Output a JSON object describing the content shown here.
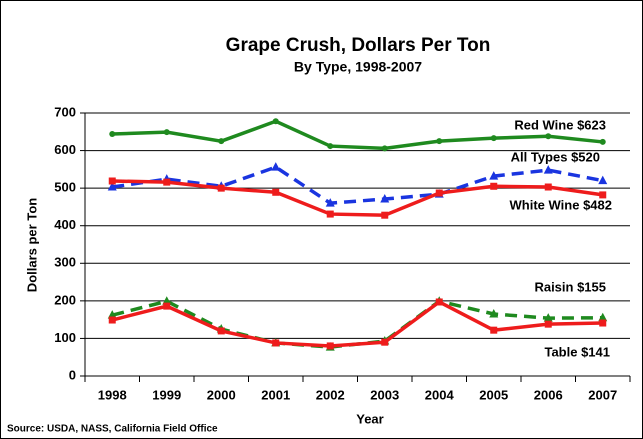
{
  "chart_data": {
    "type": "line",
    "title": "Grape Crush, Dollars Per Ton",
    "subtitle": "By Type, 1998-2007",
    "xlabel": "Year",
    "ylabel": "Dollars per Ton",
    "source": "Source: USDA, NASS, California Field Office",
    "categories": [
      "1998",
      "1999",
      "2000",
      "2001",
      "2002",
      "2003",
      "2004",
      "2005",
      "2006",
      "2007"
    ],
    "ylim": [
      0,
      700
    ],
    "yticks": [
      0,
      100,
      200,
      300,
      400,
      500,
      600,
      700
    ],
    "grid": true,
    "series": [
      {
        "color": "#1f8a1f",
        "style": "solid",
        "marker": "circle",
        "values": [
          644,
          649,
          625,
          678,
          612,
          606,
          625,
          633,
          638,
          623
        ]
      },
      {
        "color": "#1a35e0",
        "style": "dashed",
        "marker": "triangle",
        "values": [
          503,
          524,
          505,
          556,
          460,
          471,
          484,
          532,
          548,
          520
        ]
      },
      {
        "color": "#ee1c1c",
        "style": "solid",
        "marker": "square",
        "values": [
          519,
          516,
          500,
          489,
          431,
          428,
          487,
          505,
          503,
          482
        ]
      },
      {
        "color": "#1f8a1f",
        "style": "dashed",
        "marker": "triangle",
        "values": [
          162,
          199,
          125,
          88,
          77,
          93,
          199,
          165,
          154,
          155
        ]
      },
      {
        "color": "#ee1c1c",
        "style": "solid",
        "marker": "square",
        "values": [
          149,
          186,
          120,
          88,
          80,
          90,
          197,
          122,
          138,
          141
        ]
      }
    ],
    "annotations": [
      "Red Wine $623",
      "All Types $520",
      "White Wine $482",
      "Raisin $155",
      "Table $141"
    ]
  }
}
